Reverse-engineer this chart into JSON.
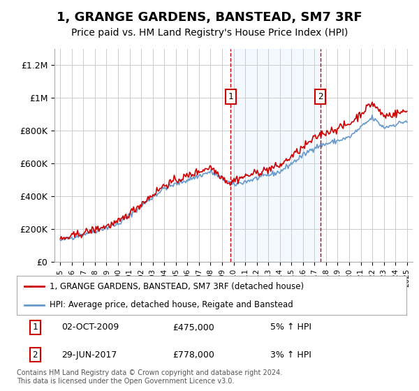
{
  "title": "1, GRANGE GARDENS, BANSTEAD, SM7 3RF",
  "subtitle": "Price paid vs. HM Land Registry's House Price Index (HPI)",
  "title_fontsize": 13,
  "subtitle_fontsize": 10,
  "background_color": "#ffffff",
  "plot_bg_color": "#ffffff",
  "grid_color": "#cccccc",
  "ylim": [
    0,
    1300000
  ],
  "yticks": [
    0,
    200000,
    400000,
    600000,
    800000,
    1000000,
    1200000
  ],
  "ytick_labels": [
    "£0",
    "£200K",
    "£400K",
    "£600K",
    "£800K",
    "£1M",
    "£1.2M"
  ],
  "hpi_color": "#6699cc",
  "price_color": "#cc0000",
  "marker1_x": 2009.75,
  "marker2_x": 2017.5,
  "shade_color": "#ddeeff",
  "shade_alpha": 0.35,
  "legend1_label": "1, GRANGE GARDENS, BANSTEAD, SM7 3RF (detached house)",
  "legend2_label": "HPI: Average price, detached house, Reigate and Banstead",
  "table_rows": [
    [
      "1",
      "02-OCT-2009",
      "£475,000",
      "5% ↑ HPI"
    ],
    [
      "2",
      "29-JUN-2017",
      "£778,000",
      "3% ↑ HPI"
    ]
  ],
  "footnote": "Contains HM Land Registry data © Crown copyright and database right 2024.\nThis data is licensed under the Open Government Licence v3.0.",
  "xmin": 1994.5,
  "xmax": 2025.5
}
